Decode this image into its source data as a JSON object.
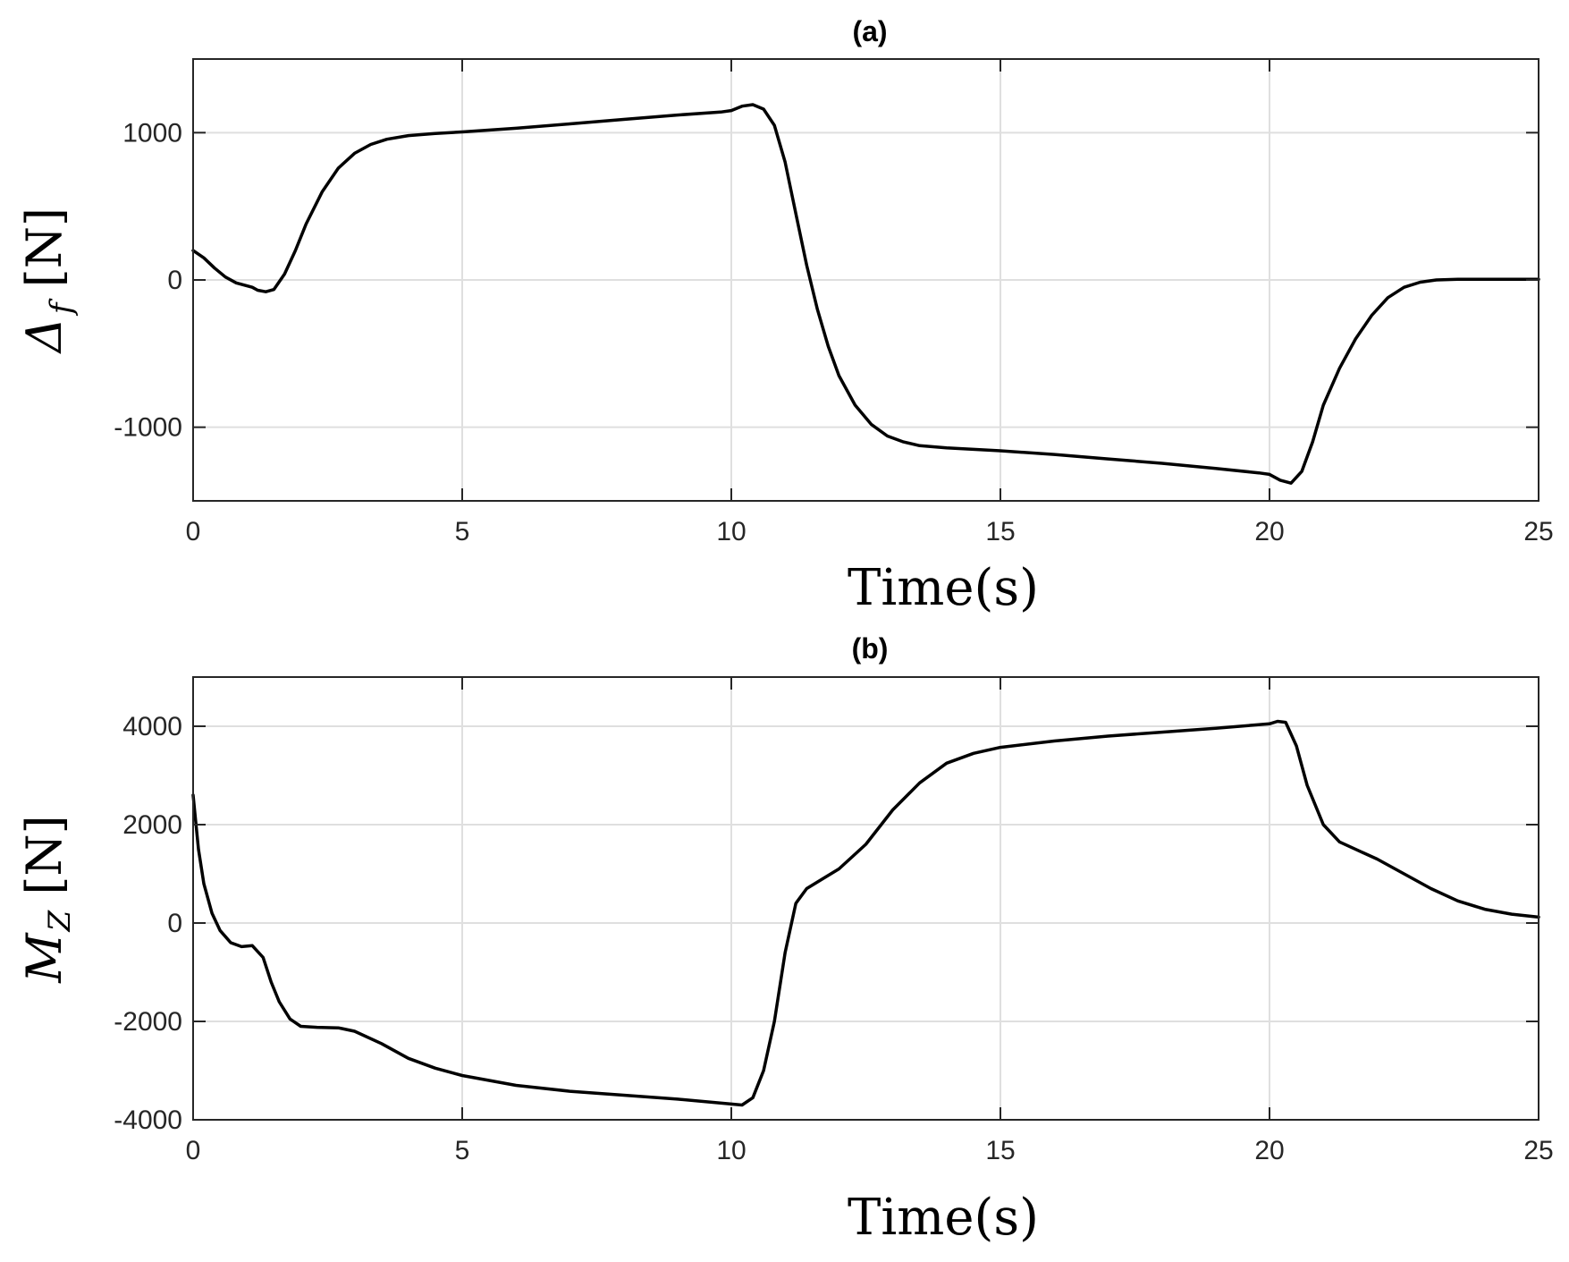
{
  "chart_data": [
    {
      "type": "line",
      "title": "(a)",
      "xlabel": "Time(s)",
      "ylabel_main": "Δ",
      "ylabel_sub": "f",
      "ylabel_unit": " [N]",
      "xlim": [
        0,
        25
      ],
      "ylim": [
        -1500,
        1500
      ],
      "xticks": [
        0,
        5,
        10,
        15,
        20,
        25
      ],
      "yticks": [
        -1000,
        0,
        1000
      ],
      "xtick_labels": [
        "0",
        "5",
        "10",
        "15",
        "20",
        "25"
      ],
      "ytick_labels": [
        "-1000",
        "0",
        "1000"
      ],
      "grid": true,
      "series": [
        {
          "color": "#000000",
          "x": [
            0,
            0.2,
            0.4,
            0.6,
            0.8,
            1.0,
            1.1,
            1.2,
            1.35,
            1.5,
            1.7,
            1.9,
            2.1,
            2.4,
            2.7,
            3.0,
            3.3,
            3.6,
            4.0,
            4.5,
            5.0,
            6.0,
            7.0,
            8.0,
            9.0,
            9.8,
            10.0,
            10.2,
            10.4,
            10.6,
            10.8,
            11.0,
            11.2,
            11.4,
            11.6,
            11.8,
            12.0,
            12.3,
            12.6,
            12.9,
            13.2,
            13.5,
            14.0,
            14.5,
            15.0,
            16.0,
            17.0,
            18.0,
            19.0,
            19.8,
            20.0,
            20.2,
            20.4,
            20.6,
            20.8,
            21.0,
            21.3,
            21.6,
            21.9,
            22.2,
            22.5,
            22.8,
            23.1,
            23.5,
            24.0,
            24.5,
            25.0
          ],
          "y": [
            200,
            150,
            80,
            20,
            -20,
            -40,
            -50,
            -70,
            -80,
            -65,
            40,
            200,
            380,
            600,
            760,
            860,
            920,
            955,
            980,
            995,
            1005,
            1030,
            1060,
            1090,
            1120,
            1140,
            1150,
            1180,
            1190,
            1160,
            1050,
            800,
            450,
            100,
            -200,
            -450,
            -650,
            -850,
            -980,
            -1060,
            -1100,
            -1125,
            -1140,
            -1150,
            -1160,
            -1185,
            -1215,
            -1245,
            -1280,
            -1310,
            -1320,
            -1360,
            -1380,
            -1300,
            -1100,
            -850,
            -600,
            -400,
            -240,
            -120,
            -50,
            -15,
            0,
            5,
            5,
            5,
            5
          ]
        }
      ]
    },
    {
      "type": "line",
      "title": "(b)",
      "xlabel": "Time(s)",
      "ylabel_main": "M",
      "ylabel_sub": "Z",
      "ylabel_unit": " [N]",
      "xlim": [
        0,
        25
      ],
      "ylim": [
        -4000,
        5000
      ],
      "xticks": [
        0,
        5,
        10,
        15,
        20,
        25
      ],
      "yticks": [
        -4000,
        -2000,
        0,
        2000,
        4000
      ],
      "xtick_labels": [
        "0",
        "5",
        "10",
        "15",
        "20",
        "25"
      ],
      "ytick_labels": [
        "-4000",
        "-2000",
        "0",
        "2000",
        "4000"
      ],
      "grid": true,
      "series": [
        {
          "color": "#000000",
          "x": [
            0,
            0.1,
            0.2,
            0.35,
            0.5,
            0.7,
            0.9,
            1.1,
            1.3,
            1.45,
            1.6,
            1.8,
            2.0,
            2.3,
            2.7,
            3.0,
            3.5,
            4.0,
            4.5,
            5.0,
            6.0,
            7.0,
            8.0,
            9.0,
            10.0,
            10.2,
            10.4,
            10.6,
            10.8,
            11.0,
            11.2,
            11.4,
            11.7,
            12.0,
            12.5,
            13.0,
            13.5,
            14.0,
            14.5,
            15.0,
            16.0,
            17.0,
            18.0,
            19.0,
            20.0,
            20.15,
            20.3,
            20.5,
            20.7,
            21.0,
            21.3,
            21.7,
            22.0,
            22.5,
            23.0,
            23.5,
            24.0,
            24.5,
            25.0
          ],
          "y": [
            2600,
            1500,
            800,
            200,
            -150,
            -400,
            -480,
            -460,
            -700,
            -1200,
            -1600,
            -1950,
            -2100,
            -2120,
            -2130,
            -2200,
            -2450,
            -2750,
            -2950,
            -3100,
            -3300,
            -3420,
            -3500,
            -3580,
            -3680,
            -3700,
            -3550,
            -3000,
            -2000,
            -600,
            400,
            700,
            900,
            1100,
            1600,
            2300,
            2850,
            3250,
            3450,
            3570,
            3700,
            3800,
            3880,
            3960,
            4050,
            4100,
            4080,
            3600,
            2800,
            2000,
            1650,
            1450,
            1300,
            1000,
            700,
            450,
            280,
            180,
            120
          ]
        }
      ]
    }
  ]
}
